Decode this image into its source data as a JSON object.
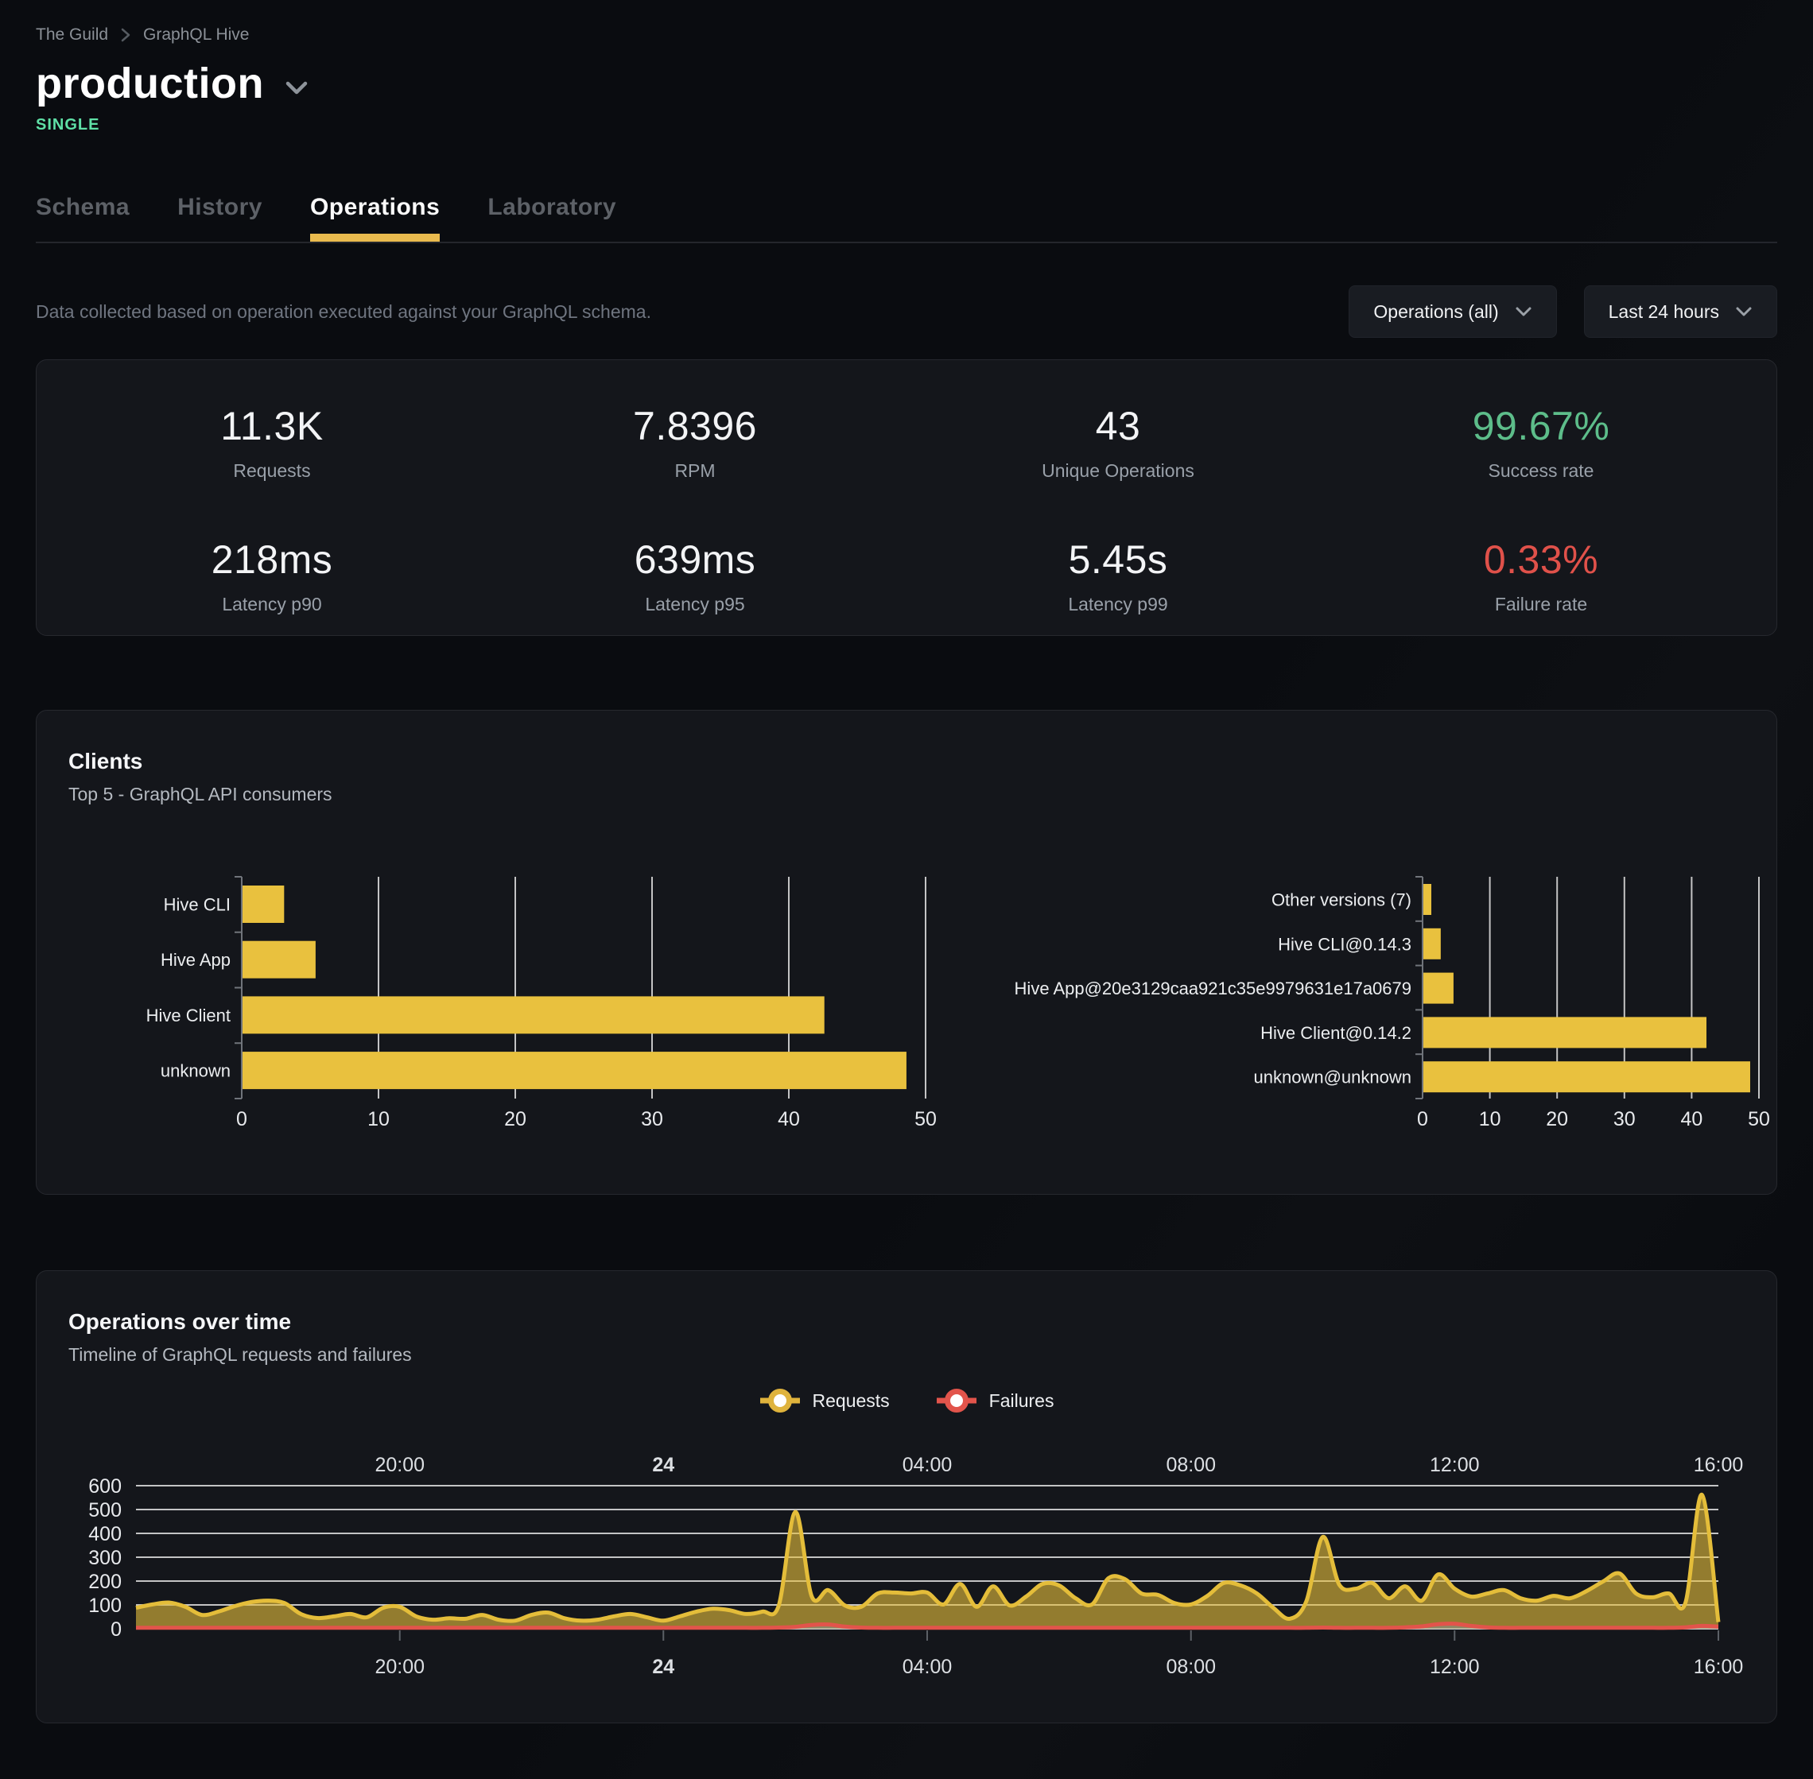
{
  "breadcrumb": {
    "org": "The Guild",
    "project": "GraphQL Hive"
  },
  "header": {
    "title": "production",
    "badge": "SINGLE"
  },
  "tabs": [
    {
      "label": "Schema",
      "active": false
    },
    {
      "label": "History",
      "active": false
    },
    {
      "label": "Operations",
      "active": true
    },
    {
      "label": "Laboratory",
      "active": false
    }
  ],
  "toolbar": {
    "description": "Data collected based on operation executed against your GraphQL schema.",
    "operations_filter": "Operations (all)",
    "period_filter": "Last 24 hours"
  },
  "stats": [
    {
      "value": "11.3K",
      "label": "Requests",
      "color": "#f3f4f6"
    },
    {
      "value": "7.8396",
      "label": "RPM",
      "color": "#f3f4f6"
    },
    {
      "value": "43",
      "label": "Unique Operations",
      "color": "#f3f4f6"
    },
    {
      "value": "99.67%",
      "label": "Success rate",
      "color": "#5dbd8a"
    },
    {
      "value": "218ms",
      "label": "Latency p90",
      "color": "#f3f4f6"
    },
    {
      "value": "639ms",
      "label": "Latency p95",
      "color": "#f3f4f6"
    },
    {
      "value": "5.45s",
      "label": "Latency p99",
      "color": "#f3f4f6"
    },
    {
      "value": "0.33%",
      "label": "Failure rate",
      "color": "#e0514a"
    }
  ],
  "clients_card": {
    "title": "Clients",
    "subtitle": "Top 5 - GraphQL API consumers"
  },
  "operations_card": {
    "title": "Operations over time",
    "subtitle": "Timeline of GraphQL requests and failures",
    "legend": [
      {
        "label": "Requests",
        "color": "#dfb33c"
      },
      {
        "label": "Failures",
        "color": "#e2544b"
      }
    ]
  },
  "colors": {
    "accent_underline": "#e9ba4e",
    "bar": "#e9c13e",
    "grid": "rgba(255,255,255,0.75)",
    "axis": "#70747b",
    "tick_text": "#e8eaed",
    "label_text": "#eceef0",
    "requests_line": "#e4bd3a",
    "requests_fill": "rgba(232,193,61,0.6)",
    "failures_line": "#e2544b",
    "failures_fill": "rgba(140,146,156,0.5)",
    "badge_green": "#5fe0a6",
    "success_green": "#5dbd8a",
    "failure_red": "#e0514a"
  },
  "chart_data": [
    {
      "id": "clients_top5",
      "type": "bar",
      "orientation": "horizontal",
      "title": "Top 5 clients by name",
      "categories": [
        "Hive CLI",
        "Hive App",
        "Hive Client",
        "unknown"
      ],
      "values": [
        3.1,
        5.4,
        42.6,
        48.6
      ],
      "xlim": [
        0,
        50
      ],
      "xticks": [
        0,
        10,
        20,
        30,
        40,
        50
      ],
      "grid": true
    },
    {
      "id": "clients_versions",
      "type": "bar",
      "orientation": "horizontal",
      "title": "Top 5 clients by version",
      "categories": [
        "Other versions (7)",
        "Hive CLI@0.14.3",
        "Hive App@20e3129caa921c35e9979631e17a0679",
        "Hive Client@0.14.2",
        "unknown@unknown"
      ],
      "values": [
        1.3,
        2.7,
        4.6,
        42.2,
        48.7
      ],
      "xlim": [
        0,
        50
      ],
      "xticks": [
        0,
        10,
        20,
        30,
        40,
        50
      ],
      "grid": true
    },
    {
      "id": "operations_over_time",
      "type": "area",
      "title": "Operations over time",
      "x_start": "16:00",
      "x_end": "16:00 (+24h)",
      "interval_minutes": 15,
      "xticks": [
        {
          "label": "20:00",
          "pos": 0.1667,
          "bold": false
        },
        {
          "label": "24",
          "pos": 0.3333,
          "bold": true
        },
        {
          "label": "04:00",
          "pos": 0.5,
          "bold": false
        },
        {
          "label": "08:00",
          "pos": 0.6667,
          "bold": false
        },
        {
          "label": "12:00",
          "pos": 0.8333,
          "bold": false
        },
        {
          "label": "16:00",
          "pos": 1.0,
          "bold": false
        }
      ],
      "ylim": [
        0,
        600
      ],
      "yticks": [
        0,
        100,
        200,
        300,
        400,
        500,
        600
      ],
      "legend_position": "top-center",
      "series": [
        {
          "name": "Requests",
          "values": [
            88,
            102,
            110,
            92,
            58,
            72,
            95,
            112,
            118,
            108,
            62,
            45,
            52,
            62,
            48,
            88,
            92,
            52,
            38,
            44,
            42,
            58,
            38,
            34,
            58,
            68,
            44,
            34,
            38,
            52,
            62,
            48,
            34,
            52,
            72,
            84,
            78,
            62,
            72,
            98,
            490,
            135,
            162,
            98,
            92,
            148,
            152,
            148,
            152,
            102,
            188,
            92,
            178,
            98,
            135,
            188,
            182,
            128,
            102,
            212,
            208,
            148,
            142,
            108,
            102,
            138,
            192,
            182,
            148,
            88,
            42,
            115,
            385,
            185,
            168,
            192,
            128,
            178,
            118,
            228,
            168,
            135,
            148,
            162,
            128,
            118,
            138,
            128,
            158,
            198,
            232,
            148,
            132,
            148,
            108,
            562,
            28
          ]
        },
        {
          "name": "Failures",
          "values": [
            4,
            4,
            4,
            4,
            4,
            4,
            4,
            4,
            4,
            4,
            4,
            4,
            4,
            4,
            4,
            4,
            4,
            4,
            4,
            4,
            4,
            4,
            4,
            4,
            4,
            4,
            4,
            4,
            4,
            4,
            4,
            4,
            4,
            4,
            4,
            4,
            4,
            4,
            4,
            5,
            8,
            16,
            18,
            9,
            5,
            4,
            4,
            4,
            4,
            4,
            4,
            4,
            4,
            4,
            4,
            4,
            4,
            4,
            4,
            4,
            4,
            4,
            4,
            4,
            4,
            4,
            4,
            4,
            4,
            4,
            4,
            4,
            5,
            4,
            4,
            4,
            4,
            6,
            10,
            19,
            21,
            12,
            6,
            4,
            4,
            4,
            4,
            4,
            4,
            4,
            4,
            4,
            4,
            4,
            6,
            12,
            9
          ]
        }
      ]
    }
  ]
}
